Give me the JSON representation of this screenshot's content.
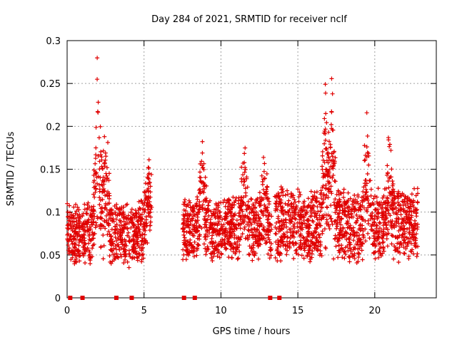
{
  "chart_data": {
    "type": "scatter",
    "title": "Day 284 of 2021, SRMTID for receiver nclf",
    "xlabel": "GPS time / hours",
    "ylabel": "SRMTID / TECUs",
    "xlim": [
      0,
      24
    ],
    "ylim": [
      0,
      0.3
    ],
    "xticks": [
      0,
      5,
      10,
      15,
      20
    ],
    "yticks": [
      0,
      0.05,
      0.1,
      0.15,
      0.2,
      0.25,
      0.3
    ],
    "xtick_labels": [
      "0",
      "5",
      "10",
      "15",
      "20"
    ],
    "ytick_labels": [
      "0",
      "0.05",
      "0.1",
      "0.15",
      "0.2",
      "0.25",
      "0.3"
    ],
    "grid": true,
    "marker": "+",
    "color": "#e00000",
    "series_name": "SRMTID",
    "zero_markers_x": [
      0.2,
      1.0,
      3.2,
      4.2,
      7.6,
      8.3,
      13.2,
      13.8
    ],
    "segments": [
      {
        "start": 0.0,
        "end": 5.5,
        "base": 0.075,
        "spread": 0.03,
        "peaks": [
          {
            "t": 2.0,
            "v": 0.29
          },
          {
            "t": 2.5,
            "v": 0.2
          },
          {
            "t": 5.3,
            "v": 0.165
          }
        ]
      },
      {
        "start": 7.5,
        "end": 13.3,
        "base": 0.08,
        "spread": 0.03,
        "peaks": [
          {
            "t": 8.8,
            "v": 0.17
          },
          {
            "t": 11.5,
            "v": 0.165
          },
          {
            "t": 12.8,
            "v": 0.16
          }
        ]
      },
      {
        "start": 13.5,
        "end": 22.8,
        "base": 0.085,
        "spread": 0.035,
        "peaks": [
          {
            "t": 16.8,
            "v": 0.225
          },
          {
            "t": 17.2,
            "v": 0.25
          },
          {
            "t": 19.5,
            "v": 0.2
          },
          {
            "t": 20.9,
            "v": 0.185
          }
        ]
      }
    ]
  }
}
